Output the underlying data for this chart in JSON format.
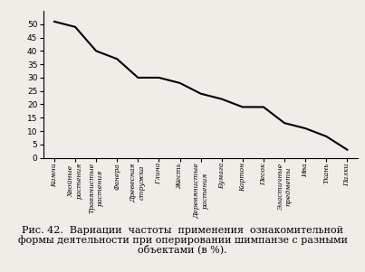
{
  "categories": [
    "Камни",
    "Хвойные\nрастения",
    "Травянистые\nрастения",
    "Фанера",
    "Древесная\nстружка",
    "Глина",
    "Жесть",
    "Деревянистые\nрастения",
    "Бумага",
    "Картон",
    "Песок",
    "Эластичные\nпредметы",
    "Ива",
    "Ткань",
    "Палки"
  ],
  "values": [
    51,
    49,
    40,
    37,
    30,
    30,
    28,
    24,
    22,
    19,
    19,
    13,
    11,
    8,
    3
  ],
  "line_color": "#000000",
  "line_width": 1.5,
  "background_color": "#f0ede8",
  "ylim": [
    0,
    55
  ],
  "yticks": [
    0,
    5,
    10,
    15,
    20,
    25,
    30,
    35,
    40,
    45,
    50
  ],
  "caption_line1": "Рис. 42.  Вариации  частоты  применения  ознакомительной",
  "caption_line2": "формы деятельности при оперировании шимпанзе с разными",
  "caption_line3": "объектами (в %).",
  "tick_fontsize": 5.5,
  "caption_fontsize": 8,
  "ytick_fontsize": 6.5
}
